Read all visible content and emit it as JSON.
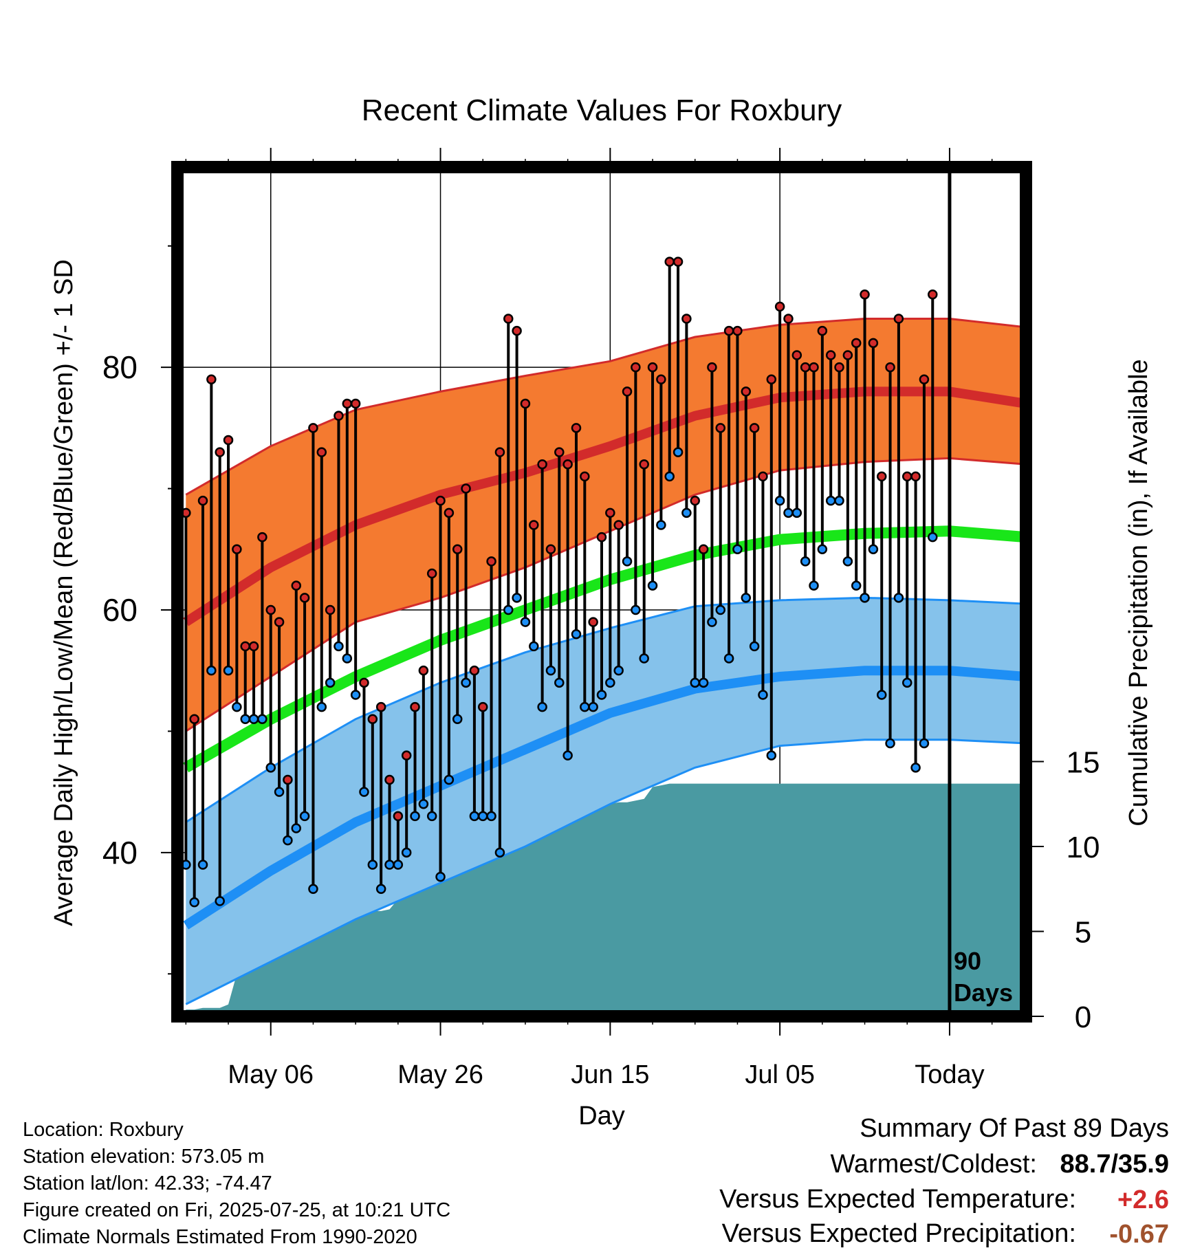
{
  "chart_data": {
    "type": "line",
    "title": "Recent Climate Values For Roxbury",
    "xlabel": "Day",
    "ylabel": "Average Daily High/Low/Mean (Red/Blue/Green) +/- 1 SD",
    "y2label": "Cumulative Precipitation (in), If Available",
    "x_tick_labels": [
      "May 06",
      "May 26",
      "Jun 15",
      "Jul 05",
      "Today"
    ],
    "x_tick_days": [
      10,
      30,
      50,
      70,
      90
    ],
    "day_range": [
      -1,
      99
    ],
    "y_ticks": [
      40,
      60,
      80
    ],
    "ylim": [
      26.5,
      96.5
    ],
    "y2_ticks": [
      0,
      5,
      10,
      15
    ],
    "y2lim": [
      0,
      50
    ],
    "today_day": 90,
    "today_label": "90 Days",
    "grid": true,
    "colors": {
      "high_band": "#f47a30",
      "high_line": "#d22b2b",
      "low_band": "#85c2eb",
      "low_line": "#1e8ff5",
      "low_edge": "#1e8ff5",
      "mean_line": "#19e619",
      "precip": "#4a9aa2",
      "high_marker": "#d22b2b",
      "low_marker": "#1e8ff5"
    },
    "normals": {
      "days": [
        0,
        10,
        20,
        30,
        40,
        50,
        60,
        70,
        80,
        90,
        99
      ],
      "high_mean": [
        59.0,
        63.5,
        67.0,
        69.5,
        71.3,
        73.5,
        76.0,
        77.5,
        78.0,
        78.0,
        77.0
      ],
      "high_upper": [
        69.5,
        73.5,
        76.5,
        78.0,
        79.3,
        80.5,
        82.5,
        83.5,
        84.0,
        84.0,
        83.3
      ],
      "high_lower": [
        50.0,
        54.5,
        59.0,
        61.0,
        63.5,
        66.5,
        69.5,
        71.5,
        72.2,
        72.5,
        72.0
      ],
      "mean": [
        47.0,
        51.0,
        54.5,
        57.5,
        60.0,
        62.5,
        64.5,
        65.8,
        66.3,
        66.5,
        66.0
      ],
      "low_mean": [
        34.0,
        38.5,
        42.5,
        45.5,
        48.5,
        51.5,
        53.5,
        54.5,
        55.0,
        55.0,
        54.5
      ],
      "low_upper": [
        42.5,
        47.0,
        51.0,
        54.0,
        56.5,
        58.5,
        60.3,
        60.8,
        61.0,
        60.8,
        60.5
      ],
      "low_lower": [
        27.5,
        31.0,
        34.5,
        37.5,
        40.5,
        44.0,
        47.0,
        48.8,
        49.3,
        49.3,
        49.0
      ]
    },
    "daily_high": [
      68,
      51,
      69,
      79,
      73,
      74,
      65,
      57,
      57,
      66,
      60,
      59,
      46,
      62,
      61,
      75,
      73,
      60,
      76,
      77,
      77,
      54,
      51,
      52,
      46,
      43,
      48,
      52,
      55,
      63,
      69,
      68,
      65,
      70,
      55,
      52,
      64,
      73,
      84,
      83,
      77,
      67,
      72,
      65,
      73,
      72,
      75,
      71,
      59,
      66,
      68,
      67,
      78,
      80,
      72,
      80,
      79,
      88.7,
      88.7,
      84,
      69,
      65,
      80,
      75,
      83,
      83,
      78,
      75,
      71,
      79,
      85,
      84,
      81,
      80,
      80,
      83,
      81,
      80,
      81,
      82,
      86,
      82,
      71,
      80,
      84,
      71,
      71,
      79,
      86
    ],
    "daily_low": [
      39,
      35.9,
      39,
      55,
      36,
      55,
      52,
      51,
      51,
      51,
      47,
      45,
      41,
      42,
      43,
      37,
      52,
      54,
      57,
      56,
      53,
      45,
      39,
      37,
      39,
      39,
      40,
      43,
      44,
      43,
      38,
      46,
      51,
      54,
      43,
      43,
      43,
      40,
      60,
      61,
      59,
      57,
      52,
      55,
      54,
      48,
      58,
      52,
      52,
      53,
      54,
      55,
      64,
      60,
      56,
      62,
      67,
      71,
      73,
      68,
      54,
      54,
      59,
      60,
      56,
      65,
      61,
      57,
      53,
      48,
      69,
      68,
      68,
      64,
      62,
      65,
      69,
      69,
      64,
      62,
      61,
      65,
      53,
      49,
      61,
      54,
      47,
      49,
      66
    ],
    "precip_cumulative": [
      0.4,
      0.4,
      0.5,
      0.5,
      0.5,
      0.7,
      2.5,
      3.5,
      3.5,
      5.0,
      5.0,
      5.1,
      5.1,
      5.2,
      5.2,
      5.2,
      5.2,
      5.3,
      5.9,
      6.1,
      6.2,
      6.2,
      6.2,
      6.2,
      6.3,
      6.9,
      7.3,
      8.5,
      8.6,
      9.5,
      9.8,
      9.8,
      9.8,
      10.2,
      10.4,
      10.6,
      10.6,
      11.0,
      11.2,
      11.5,
      11.5,
      11.6,
      11.8,
      11.9,
      12.1,
      12.1,
      12.3,
      12.5,
      12.5,
      12.5,
      12.5,
      12.6,
      12.6,
      12.7,
      12.8,
      13.5,
      13.6,
      13.7,
      13.7,
      13.7,
      13.7,
      13.7,
      13.7,
      13.7,
      13.7,
      13.7,
      13.7,
      13.7,
      13.7,
      13.7,
      13.7,
      13.7,
      13.7,
      13.7,
      13.7,
      13.7,
      13.7,
      13.7,
      13.7,
      13.7,
      13.7,
      13.7,
      13.7,
      13.7,
      13.7,
      13.7,
      13.7,
      13.7,
      13.7,
      13.7,
      13.7,
      13.7,
      13.7,
      13.7,
      13.7,
      13.7,
      13.7,
      13.7,
      13.7,
      13.7
    ]
  },
  "footer": {
    "location": "Location: Roxbury",
    "elevation": "Station elevation: 573.05 m",
    "latlon": "Station lat/lon: 42.33; -74.47",
    "created": "Figure created on Fri, 2025-07-25, at 10:21 UTC",
    "normals": "Climate Normals Estimated From 1990-2020"
  },
  "summary": {
    "title": "Summary Of Past 89 Days",
    "warmest_label": "Warmest/Coldest:",
    "warmest_value": "88.7/35.9",
    "temp_label": "Versus Expected Temperature:",
    "temp_value": "+2.6",
    "temp_color": "#d22b2b",
    "precip_label": "Versus Expected Precipitation:",
    "precip_value": "-0.67",
    "precip_color": "#a0522d"
  }
}
